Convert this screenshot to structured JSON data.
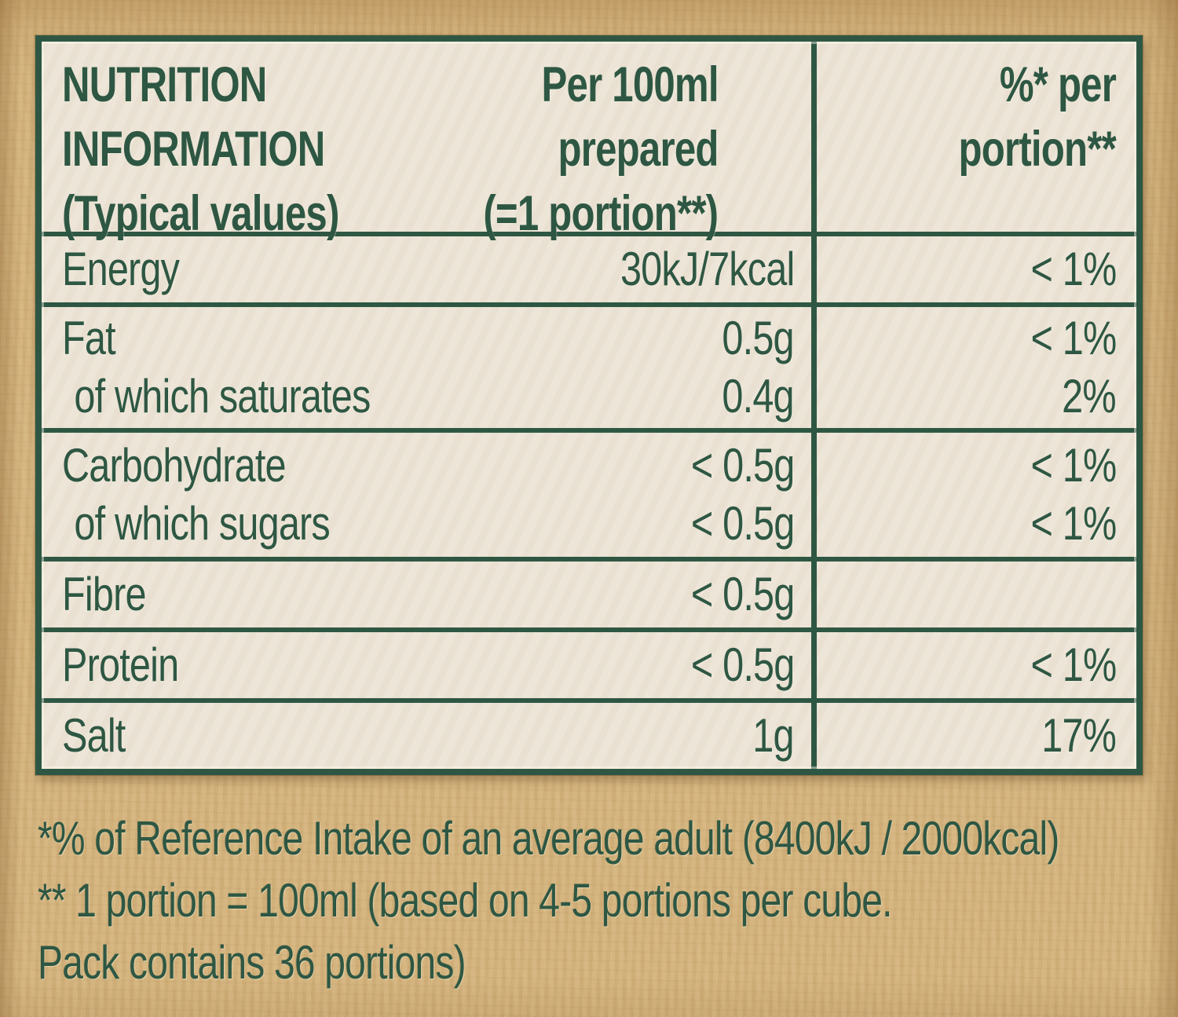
{
  "colors": {
    "ink_green": "#2e5743",
    "cell_cream": "#ece4d6",
    "paper_tan": "#d3b27c"
  },
  "table": {
    "header": {
      "col1": [
        "NUTRITION",
        "INFORMATION",
        "(Typical values)"
      ],
      "col2": [
        "Per 100ml",
        "prepared",
        "(=1 portion**)"
      ],
      "col3": [
        "%* per",
        "portion**"
      ]
    },
    "rows": [
      {
        "lines": [
          {
            "label": "Energy",
            "value": "30kJ/7kcal",
            "pct": "< 1%"
          }
        ]
      },
      {
        "lines": [
          {
            "label": "Fat",
            "value": "0.5g",
            "pct": "< 1%"
          },
          {
            "label": "of which saturates",
            "value": "0.4g",
            "pct": "2%"
          }
        ]
      },
      {
        "lines": [
          {
            "label": "Carbohydrate",
            "value": "< 0.5g",
            "pct": "< 1%"
          },
          {
            "label": "of which sugars",
            "value": "< 0.5g",
            "pct": "< 1%"
          }
        ]
      },
      {
        "lines": [
          {
            "label": "Fibre",
            "value": "< 0.5g",
            "pct": ""
          }
        ]
      },
      {
        "lines": [
          {
            "label": "Protein",
            "value": "< 0.5g",
            "pct": "< 1%"
          }
        ]
      },
      {
        "lines": [
          {
            "label": "Salt",
            "value": "1g",
            "pct": "17%"
          }
        ]
      }
    ]
  },
  "footnotes": [
    "*% of Reference Intake of an average adult (8400kJ / 2000kcal)",
    "** 1 portion = 100ml (based on 4-5 portions per cube.",
    "Pack contains 36 portions)"
  ]
}
